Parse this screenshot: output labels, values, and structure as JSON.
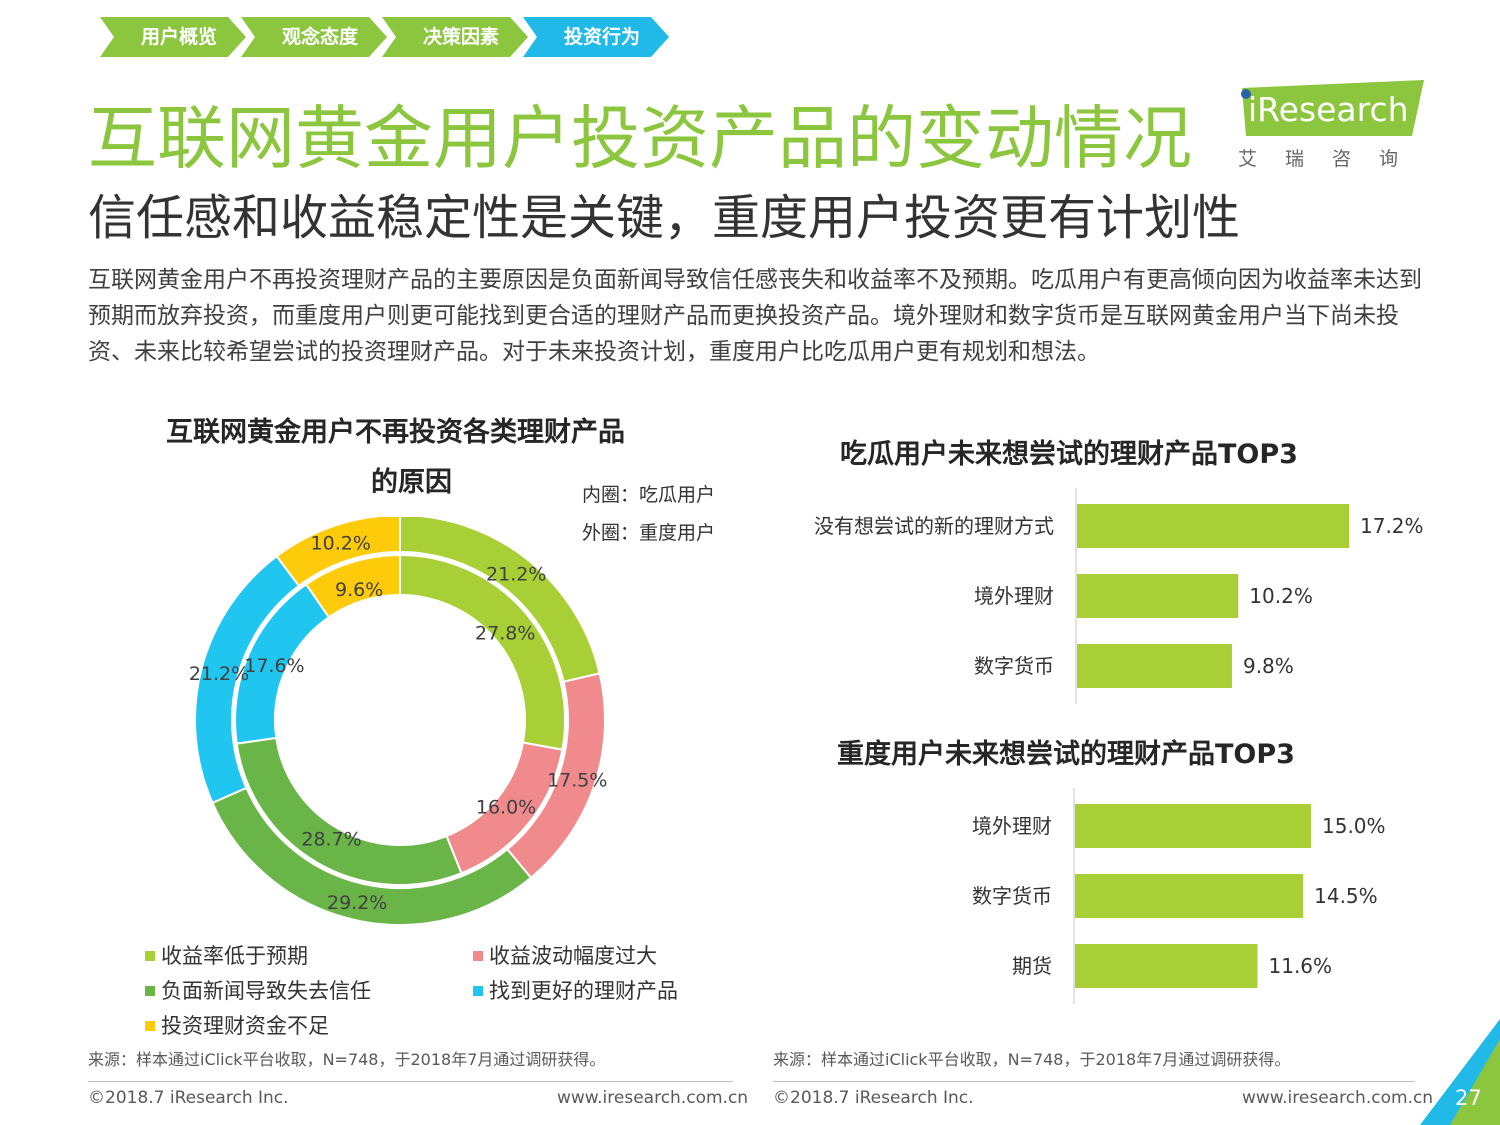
{
  "breadcrumb": [
    {
      "label": "用户概览",
      "color": "#8cc63f"
    },
    {
      "label": "观念态度",
      "color": "#8cc63f"
    },
    {
      "label": "决策因素",
      "color": "#8cc63f"
    },
    {
      "label": "投资行为",
      "color": "#20b9e8"
    }
  ],
  "logo": {
    "wordmark": "iResearch",
    "cn": "艾瑞咨询"
  },
  "header": {
    "title": "互联网黄金用户投资产品的变动情况",
    "subtitle": "信任感和收益稳定性是关键，重度用户投资更有计划性"
  },
  "description": "互联网黄金用户不再投资理财产品的主要原因是负面新闻导致信任感丧失和收益率不及预期。吃瓜用户有更高倾向因为收益率未达到预期而放弃投资，而重度用户则更可能找到更合适的理财产品而更换投资产品。境外理财和数字货币是互联网黄金用户当下尚未投资、未来比较希望尝试的投资理财产品。对于未来投资计划，重度用户比吃瓜用户更有规划和想法。",
  "chart_data": [
    {
      "type": "pie",
      "title_line1": "互联网黄金用户不再投资各类理财产品",
      "title_line2": "的原因",
      "inner_note": "内圈：吃瓜用户",
      "outer_note": "外圈：重度用户",
      "categories": [
        "收益率低于预期",
        "收益波动幅度过大",
        "负面新闻导致失去信任",
        "找到更好的理财产品",
        "投资理财资金不足"
      ],
      "colors": [
        "#a8cf36",
        "#f08a8c",
        "#6ab547",
        "#20c5f0",
        "#fecb0b"
      ],
      "series": [
        {
          "name": "内圈：吃瓜用户",
          "values": [
            27.8,
            16.0,
            28.7,
            17.6,
            9.6
          ],
          "labels": [
            "27.8%",
            "16.0%",
            "28.7%",
            "17.6%",
            "9.6%"
          ]
        },
        {
          "name": "外圈：重度用户",
          "values": [
            21.2,
            17.5,
            29.2,
            21.2,
            10.2
          ],
          "labels": [
            "21.2%",
            "17.5%",
            "29.2%",
            "21.2%",
            "10.2%"
          ]
        }
      ],
      "legend": [
        {
          "label": "收益率低于预期",
          "color": "#a8cf36"
        },
        {
          "label": "收益波动幅度过大",
          "color": "#f08a8c"
        },
        {
          "label": "负面新闻导致失去信任",
          "color": "#6ab547"
        },
        {
          "label": "找到更好的理财产品",
          "color": "#20c5f0"
        },
        {
          "label": "投资理财资金不足",
          "color": "#fecb0b"
        }
      ]
    },
    {
      "type": "bar",
      "title": "吃瓜用户未来想尝试的理财产品TOP3",
      "categories": [
        "没有想尝试的新的理财方式",
        "境外理财",
        "数字货币"
      ],
      "values": [
        17.2,
        10.2,
        9.8
      ],
      "labels": [
        "17.2%",
        "10.2%",
        "9.8%"
      ],
      "color": "#a8cf36"
    },
    {
      "type": "bar",
      "title": "重度用户未来想尝试的理财产品TOP3",
      "categories": [
        "境外理财",
        "数字货币",
        "期货"
      ],
      "values": [
        15.0,
        14.5,
        11.6
      ],
      "labels": [
        "15.0%",
        "14.5%",
        "11.6%"
      ],
      "color": "#a8cf36"
    }
  ],
  "footer": {
    "source": "来源：样本通过iClick平台收取，N=748，于2018年7月通过调研获得。",
    "copyright": "©2018.7 iResearch Inc.",
    "website": "www.iresearch.com.cn",
    "page": "27"
  }
}
